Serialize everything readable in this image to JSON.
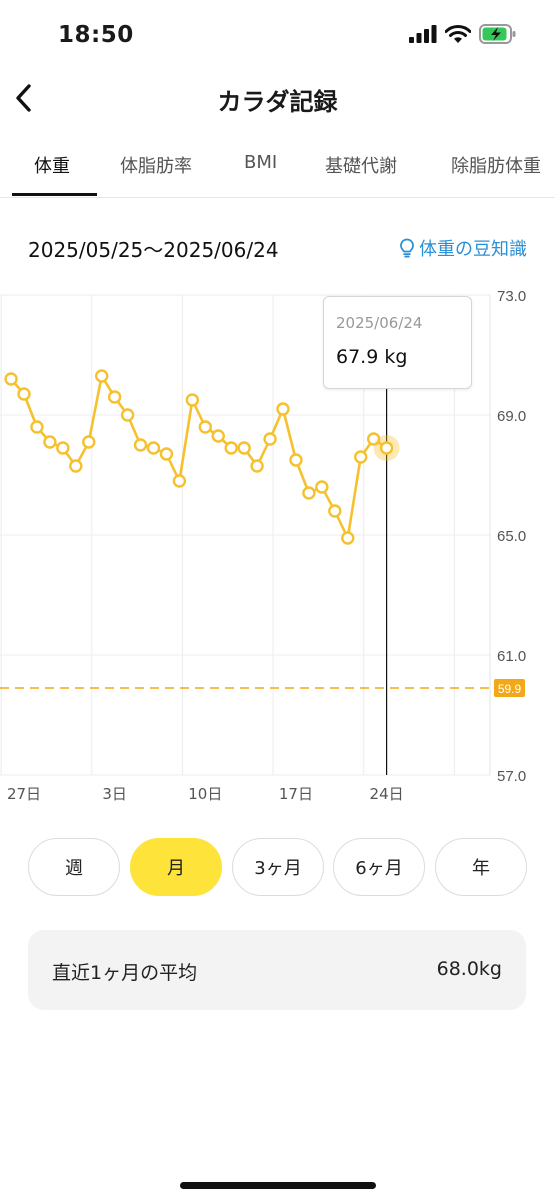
{
  "status": {
    "time": "18:50"
  },
  "nav": {
    "title": "カラダ記録"
  },
  "tabs": [
    "体重",
    "体脂肪率",
    "BMI",
    "基礎代謝",
    "除脂肪体重"
  ],
  "active_tab": "体重",
  "date_range": "2025/05/25〜2025/06/24",
  "tips_label": "体重の豆知識",
  "tooltip": {
    "date": "2025/06/24",
    "value": "67.9 kg"
  },
  "chart_data": {
    "type": "line",
    "x_tick_labels": [
      "27日",
      "3日",
      "10日",
      "17日",
      "24日"
    ],
    "y_tick_labels": [
      "73.0",
      "69.0",
      "65.0",
      "61.0",
      "57.0"
    ],
    "ylim": [
      57,
      73
    ],
    "grid": true,
    "target_line": {
      "value": 59.9,
      "label": "59.9"
    },
    "series": [
      {
        "x": [
          "2025-05-26",
          "2025-05-27",
          "2025-05-28",
          "2025-05-29",
          "2025-05-30",
          "2025-05-31",
          "2025-06-01",
          "2025-06-02",
          "2025-06-03",
          "2025-06-04",
          "2025-06-05",
          "2025-06-06",
          "2025-06-07",
          "2025-06-08",
          "2025-06-09",
          "2025-06-10",
          "2025-06-11",
          "2025-06-12",
          "2025-06-13",
          "2025-06-14",
          "2025-06-15",
          "2025-06-16",
          "2025-06-17",
          "2025-06-18",
          "2025-06-19",
          "2025-06-20",
          "2025-06-21",
          "2025-06-22",
          "2025-06-23",
          "2025-06-24"
        ],
        "values": [
          70.2,
          69.7,
          68.6,
          68.1,
          67.9,
          67.3,
          68.1,
          70.3,
          69.6,
          69.0,
          68.0,
          67.9,
          67.7,
          66.8,
          69.5,
          68.6,
          68.3,
          67.9,
          67.9,
          67.3,
          68.2,
          69.2,
          67.5,
          66.4,
          66.6,
          65.8,
          64.9,
          67.6,
          68.2,
          67.9
        ]
      }
    ],
    "line_color": "#f6c12e",
    "selected_point_date": "2025-06-24"
  },
  "periods": [
    "週",
    "月",
    "3ヶ月",
    "6ヶ月",
    "年"
  ],
  "active_period": "月",
  "average": {
    "label": "直近1ヶ月の平均",
    "value": "68.0kg"
  }
}
